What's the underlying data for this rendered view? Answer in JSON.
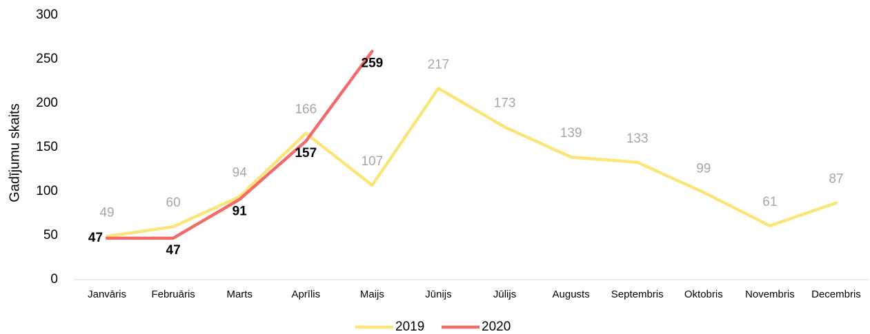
{
  "chart_data": {
    "type": "line",
    "y_label": "Gadījumu skaits",
    "categories": [
      "Janvāris",
      "Februāris",
      "Marts",
      "Aprīlis",
      "Maijs",
      "Jūnijs",
      "Jūlijs",
      "Augusts",
      "Septembris",
      "Oktobris",
      "Novembris",
      "Decembris"
    ],
    "series": [
      {
        "name": "2019",
        "color": "#fbe57a",
        "values": [
          49,
          60,
          94,
          166,
          107,
          217,
          173,
          139,
          133,
          99,
          61,
          87
        ]
      },
      {
        "name": "2020",
        "color": "#f26b6b",
        "values": [
          47,
          47,
          91,
          157,
          259,
          null,
          null,
          null,
          null,
          null,
          null,
          null
        ]
      }
    ],
    "ylim": [
      0,
      300
    ],
    "yticks": [
      0,
      50,
      100,
      150,
      200,
      250,
      300
    ],
    "grid": false,
    "legend": "bottom"
  }
}
